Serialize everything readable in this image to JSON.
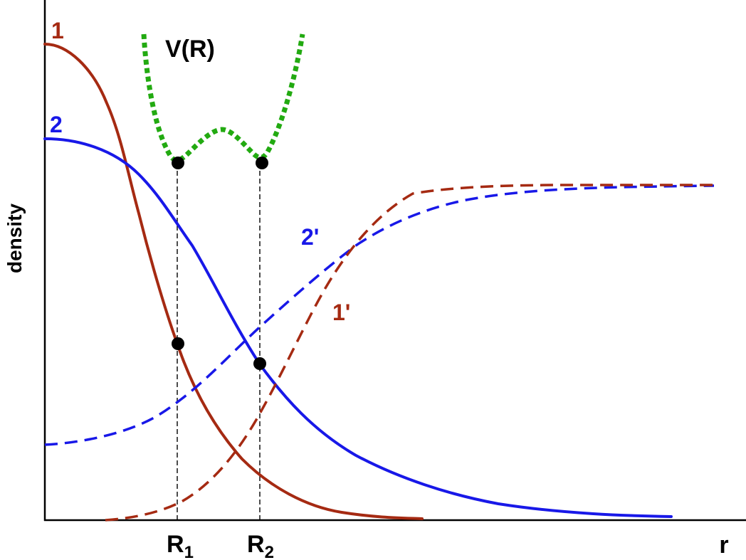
{
  "labels": {
    "y_axis": "density",
    "x_axis": "r",
    "potential": "V(R)",
    "curve_1": "1",
    "curve_2": "2",
    "curve_1_prime": "1'",
    "curve_2_prime": "2'",
    "R1_main": "R",
    "R1_sub": "1",
    "R2_main": "R",
    "R2_sub": "2"
  },
  "colors": {
    "curve_1": "#a52a12",
    "curve_2": "#1818e8",
    "potential": "#22aa11",
    "axes": "#000000",
    "markers": "#000000"
  }
}
